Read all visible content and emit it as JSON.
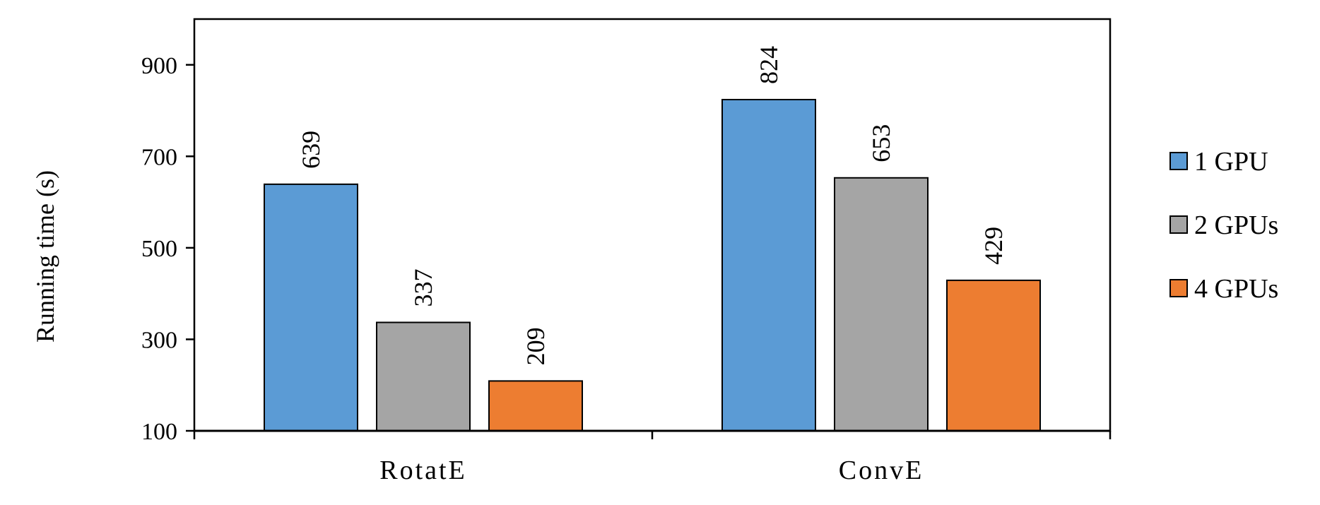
{
  "chart_data": {
    "type": "bar",
    "categories": [
      "RotatE",
      "ConvE"
    ],
    "series": [
      {
        "name": "1 GPU",
        "values": [
          639,
          824
        ],
        "color": "#5b9bd5"
      },
      {
        "name": "2 GPUs",
        "values": [
          337,
          653
        ],
        "color": "#a5a5a5"
      },
      {
        "name": "4 GPUs",
        "values": [
          209,
          429
        ],
        "color": "#ed7d31"
      }
    ],
    "title": "",
    "xlabel": "",
    "ylabel": "Running time (s)",
    "ylim": [
      100,
      1000
    ],
    "yticks": [
      100,
      300,
      500,
      700,
      900
    ],
    "grid": false,
    "legend_position": "right"
  }
}
